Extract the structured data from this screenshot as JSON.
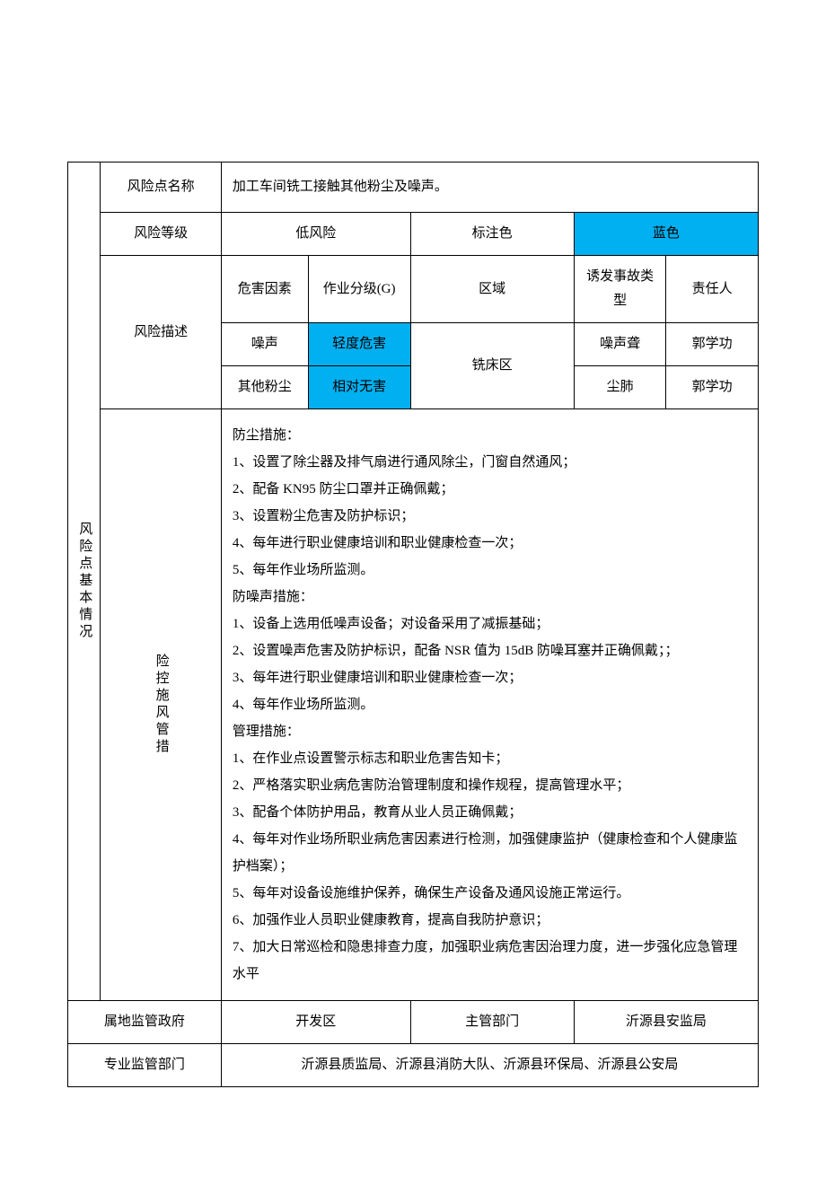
{
  "colors": {
    "blue_bg": "#00b0f0",
    "border": "#000000",
    "text": "#000000",
    "page_bg": "#ffffff"
  },
  "labels": {
    "section_vertical": "风险点基本情况",
    "risk_point_name": "风险点名称",
    "risk_level": "风险等级",
    "color_label": "标注色",
    "risk_desc": "风险描述",
    "hazard_factor": "危害因素",
    "work_grade": "作业分级(G)",
    "area": "区域",
    "accident_type": "诱发事故类型",
    "responsible": "责任人",
    "risk_control": "险控施风管措",
    "local_gov": "属地监管政府",
    "main_dept": "主管部门",
    "pro_dept": "专业监管部门"
  },
  "values": {
    "risk_point_name": "加工车间铣工接触其他粉尘及噪声。",
    "risk_level": "低风险",
    "color_value": "蓝色",
    "hazards": [
      {
        "factor": "噪声",
        "grade": "轻度危害",
        "area": "铣床区",
        "accident": "噪声聋",
        "person": "郭学功"
      },
      {
        "factor": "其他粉尘",
        "grade": "相对无害",
        "area": "铣床区",
        "accident": "尘肺",
        "person": "郭学功"
      }
    ],
    "area_merged": "铣床区",
    "measures_lines": [
      "防尘措施：",
      "1、设置了除尘器及排气扇进行通风除尘，门窗自然通风；",
      "2、配备 KN95 防尘口罩并正确佩戴；",
      "3、设置粉尘危害及防护标识；",
      "4、每年进行职业健康培训和职业健康检查一次；",
      "5、每年作业场所监测。",
      "防噪声措施：",
      "1、设备上选用低噪声设备；对设备采用了减振基础；",
      "2、设置噪声危害及防护标识，配备 NSR 值为 15dB 防噪耳塞并正确佩戴；；",
      "3、每年进行职业健康培训和职业健康检查一次；",
      "4、每年作业场所监测。",
      "管理措施：",
      "1、在作业点设置警示标志和职业危害告知卡；",
      "2、严格落实职业病危害防治管理制度和操作规程，提高管理水平；",
      "3、配备个体防护用品，教育从业人员正确佩戴；",
      "4、每年对作业场所职业病危害因素进行检测，加强健康监护（健康检查和个人健康监护档案）；",
      "5、每年对设备设施维护保养，确保生产设备及通风设施正常运行。",
      "6、加强作业人员职业健康教育，提高自我防护意识；",
      "7、加大日常巡检和隐患排查力度，加强职业病危害因治理力度，进一步强化应急管理水平"
    ],
    "local_gov": "开发区",
    "main_dept": "沂源县安监局",
    "pro_dept": "沂源县质监局、沂源县消防大队、沂源县环保局、沂源县公安局"
  }
}
